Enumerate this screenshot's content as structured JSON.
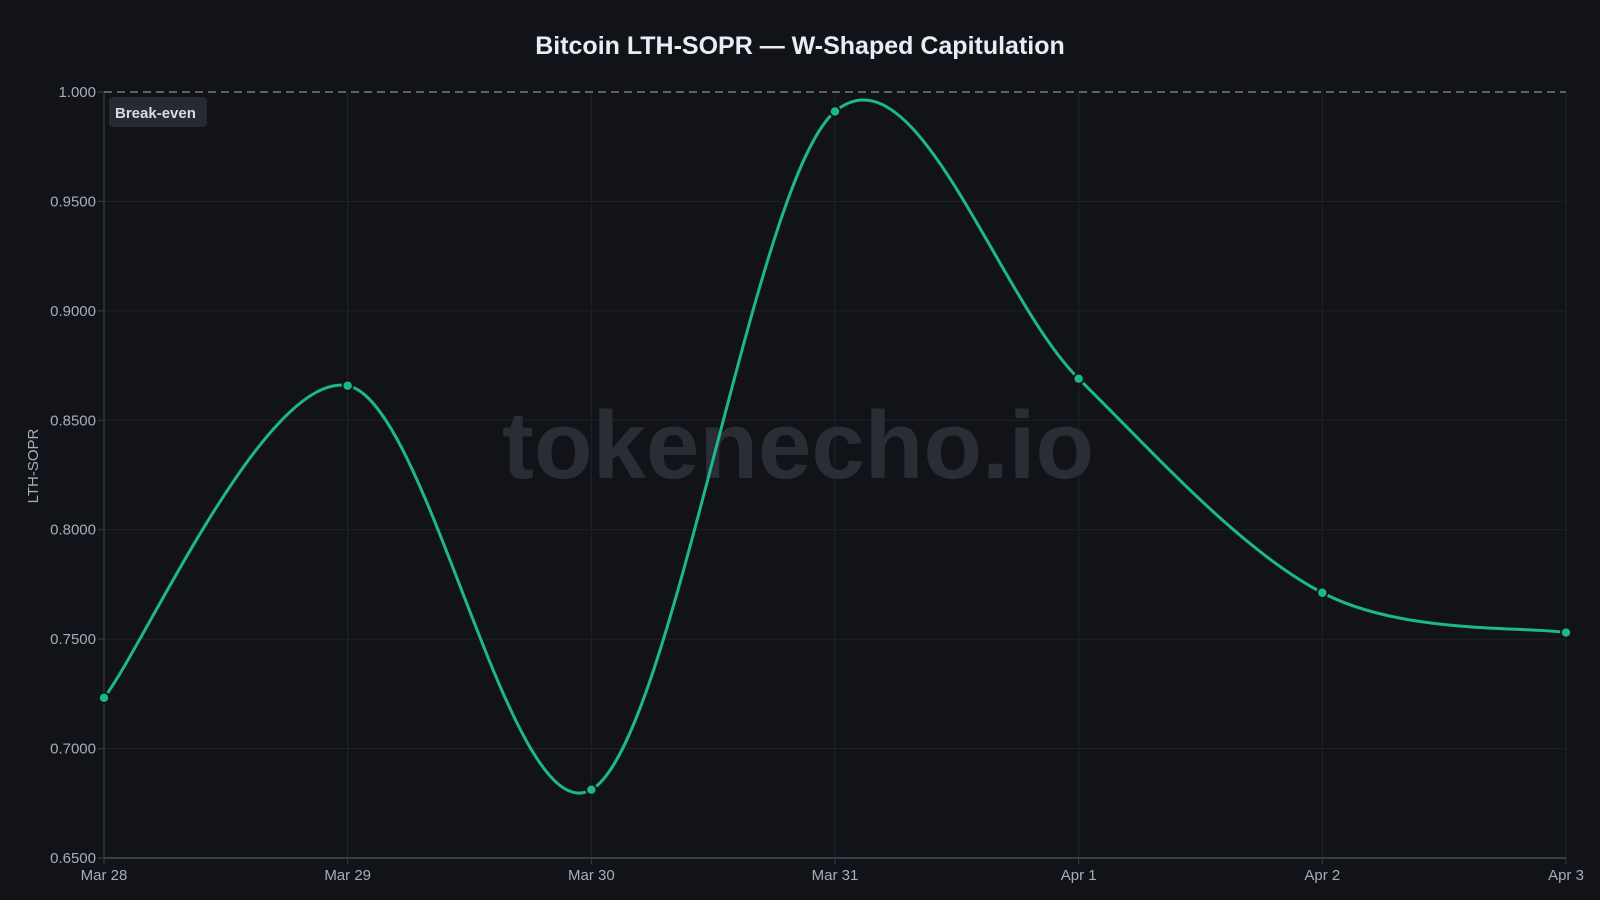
{
  "title": "Bitcoin LTH-SOPR — W-Shaped Capitulation",
  "watermark": "tokenecho.io",
  "y_axis_label": "LTH-SOPR",
  "reference_line": {
    "label": "Break-even",
    "value": 1.0
  },
  "colors": {
    "background": "#111318",
    "line": "#1db888",
    "grid": "#1f232a",
    "text": "#a7adb8",
    "title": "#e8edf5",
    "reference": "#8a8f98"
  },
  "chart_data": {
    "type": "line",
    "title": "Bitcoin LTH-SOPR — W-Shaped Capitulation",
    "xlabel": "",
    "ylabel": "LTH-SOPR",
    "categories": [
      "Mar 28",
      "Mar 29",
      "Mar 30",
      "Mar 31",
      "Apr 1",
      "Apr 2",
      "Apr 3"
    ],
    "series": [
      {
        "name": "LTH-SOPR",
        "values": [
          0.7232,
          0.8658,
          0.6812,
          0.9911,
          0.869,
          0.7712,
          0.753
        ]
      }
    ],
    "y_ticks": [
      "1.000",
      "0.9500",
      "0.9000",
      "0.8500",
      "0.8000",
      "0.7500",
      "0.7000",
      "0.6500"
    ],
    "ylim": [
      0.65,
      1.0
    ],
    "grid": true,
    "legend": "none",
    "annotations": [
      {
        "type": "hline",
        "y": 1.0,
        "style": "dashed",
        "label": "Break-even"
      }
    ]
  }
}
